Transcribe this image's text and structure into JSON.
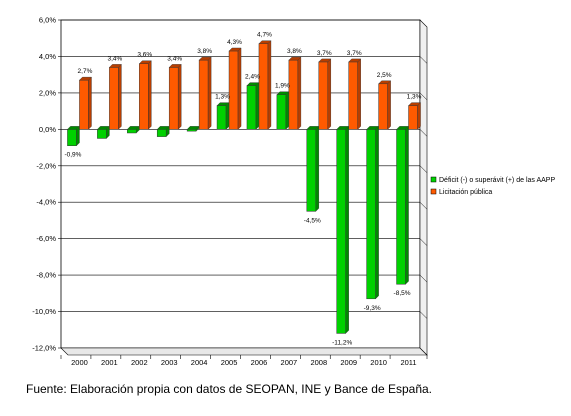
{
  "source_note": "Fuente: Elaboración propia con datos de SEOPAN, INE y Bance de España.",
  "chart_data": {
    "type": "bar",
    "categories": [
      "2000",
      "2001",
      "2002",
      "2003",
      "2004",
      "2005",
      "2006",
      "2007",
      "2008",
      "2009",
      "2010",
      "2011"
    ],
    "series": [
      {
        "name": "Déficit (-) o superávit (+) de las AAPP",
        "color": "#00d100",
        "values": [
          -0.9,
          -0.5,
          -0.2,
          -0.4,
          -0.1,
          1.3,
          2.4,
          1.9,
          -4.5,
          -11.2,
          -9.3,
          -8.5
        ],
        "labels": [
          "-0,9%",
          "",
          "",
          "",
          "",
          "1,3%",
          "2,4%",
          "1,9%",
          "-4,5%",
          "-11,2%",
          "-9,3%",
          "-8,5%"
        ]
      },
      {
        "name": "Licitación pública",
        "color": "#ff5a00",
        "values": [
          2.7,
          3.4,
          3.6,
          3.4,
          3.8,
          4.3,
          4.7,
          3.8,
          3.7,
          3.7,
          2.5,
          1.3
        ],
        "labels": [
          "2,7%",
          "3,4%",
          "3,6%",
          "3,4%",
          "3,8%",
          "4,3%",
          "4,7%",
          "3,8%",
          "3,7%",
          "3,7%",
          "2,5%",
          "1,3%"
        ]
      }
    ],
    "yticks": [
      "6,0%",
      "4,0%",
      "2,0%",
      "0,0%",
      "-2,0%",
      "-4,0%",
      "-6,0%",
      "-8,0%",
      "-10,0%",
      "-12,0%"
    ],
    "ytick_values": [
      6,
      4,
      2,
      0,
      -2,
      -4,
      -6,
      -8,
      -10,
      -12
    ],
    "ylim": [
      -12,
      6
    ],
    "grid": true,
    "legend_position": "right"
  }
}
